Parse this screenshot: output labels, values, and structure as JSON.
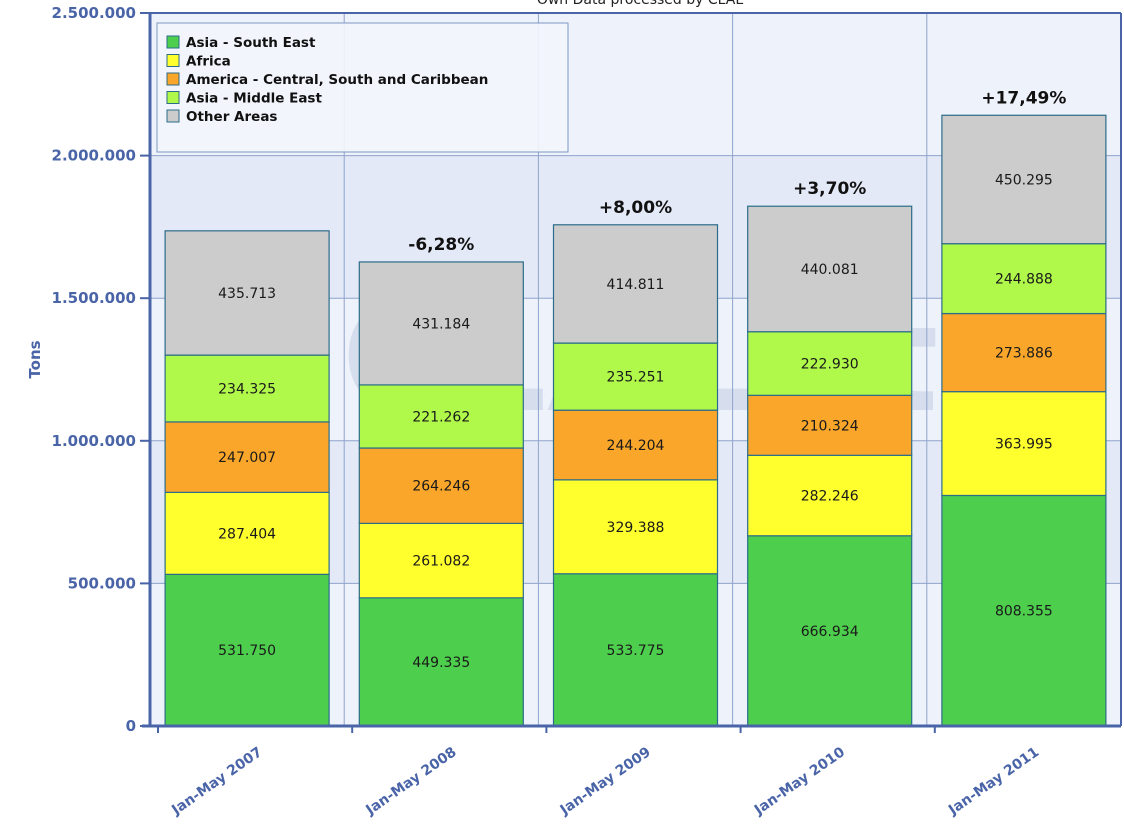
{
  "chart_data": {
    "type": "bar",
    "stacked": true,
    "title": "Own Data processed by CLAL",
    "ylabel": "Tons",
    "ylim": [
      0,
      2500000
    ],
    "yticks": [
      0,
      500000,
      1000000,
      1500000,
      2000000,
      2500000
    ],
    "ytick_labels": [
      "0",
      "500.000",
      "1.000.000",
      "1.500.000",
      "2.000.000",
      "2.500.000"
    ],
    "categories": [
      "Jan-May 2007",
      "Jan-May 2008",
      "Jan-May 2009",
      "Jan-May 2010",
      "Jan-May 2011"
    ],
    "series": [
      {
        "name": "Asia - South East",
        "color": "#4dcf4d",
        "values": [
          531750,
          449335,
          533775,
          666934,
          808355
        ],
        "labels": [
          "531.750",
          "449.335",
          "533.775",
          "666.934",
          "808.355"
        ]
      },
      {
        "name": "Africa",
        "color": "#ffff2e",
        "values": [
          287404,
          261082,
          329388,
          282246,
          363995
        ],
        "labels": [
          "287.404",
          "261.082",
          "329.388",
          "282.246",
          "363.995"
        ]
      },
      {
        "name": "America - Central, South and Caribbean",
        "color": "#f9a62a",
        "values": [
          247007,
          264246,
          244204,
          210324,
          273886
        ],
        "labels": [
          "247.007",
          "264.246",
          "244.204",
          "210.324",
          "273.886"
        ]
      },
      {
        "name": "Asia - Middle East",
        "color": "#b0f94a",
        "values": [
          234325,
          221262,
          235251,
          222930,
          244888
        ],
        "labels": [
          "234.325",
          "221.262",
          "235.251",
          "222.930",
          "244.888"
        ]
      },
      {
        "name": "Other Areas",
        "color": "#cccccc",
        "values": [
          435713,
          431184,
          414811,
          440081,
          450295
        ],
        "labels": [
          "435.713",
          "431.184",
          "414.811",
          "440.081",
          "450.295"
        ]
      }
    ],
    "change_labels": [
      "",
      "-6,28%",
      "+8,00%",
      "+3,70%",
      "+17,49%"
    ],
    "grid": true,
    "legend_position": "top-left",
    "watermark": "CLAL.it"
  }
}
